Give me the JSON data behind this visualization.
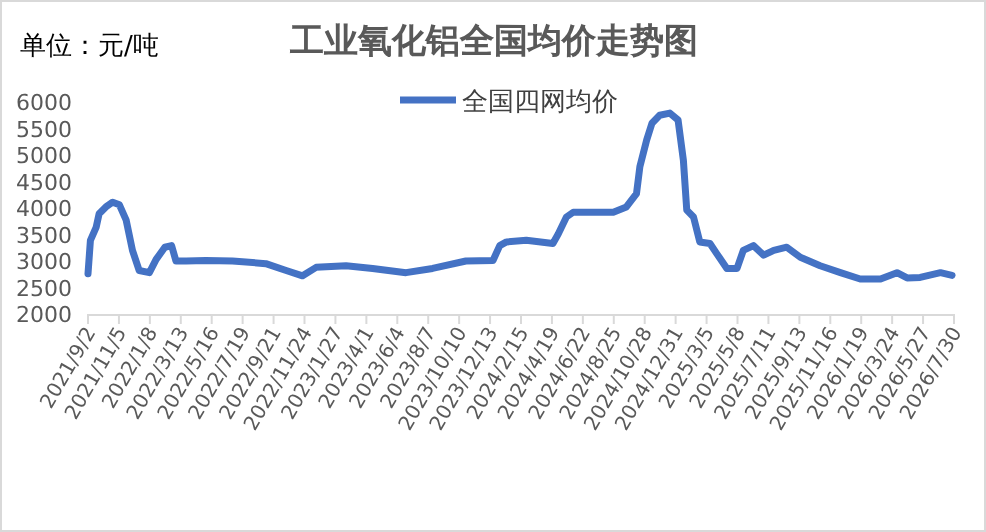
{
  "chart_data": {
    "type": "line",
    "title": "工业氧化铝全国均价走势图",
    "annotations": [
      "单位：元/吨"
    ],
    "legend": "top",
    "grid": false,
    "xlim": [
      "2021-09-02",
      "2026-07-30"
    ],
    "xticks": [
      {
        "value": "2021-09-02",
        "label": "2021/9/2"
      },
      {
        "value": "2021-11-05",
        "label": "2021/11/5"
      },
      {
        "value": "2022-01-08",
        "label": "2022/1/8"
      },
      {
        "value": "2022-03-13",
        "label": "2022/3/13"
      },
      {
        "value": "2022-05-16",
        "label": "2022/5/16"
      },
      {
        "value": "2022-07-19",
        "label": "2022/7/19"
      },
      {
        "value": "2022-09-21",
        "label": "2022/9/21"
      },
      {
        "value": "2022-11-24",
        "label": "2022/11/24"
      },
      {
        "value": "2023-01-27",
        "label": "2023/1/27"
      },
      {
        "value": "2023-04-01",
        "label": "2023/4/1"
      },
      {
        "value": "2023-06-04",
        "label": "2023/6/4"
      },
      {
        "value": "2023-08-07",
        "label": "2023/8/7"
      },
      {
        "value": "2023-10-10",
        "label": "2023/10/10"
      },
      {
        "value": "2023-12-13",
        "label": "2023/12/13"
      },
      {
        "value": "2024-02-15",
        "label": "2024/2/15"
      },
      {
        "value": "2024-04-19",
        "label": "2024/4/19"
      },
      {
        "value": "2024-06-22",
        "label": "2024/6/22"
      },
      {
        "value": "2024-08-25",
        "label": "2024/8/25"
      },
      {
        "value": "2024-10-28",
        "label": "2024/10/28"
      },
      {
        "value": "2024-12-31",
        "label": "2024/12/31"
      },
      {
        "value": "2025-03-05",
        "label": "2025/3/5"
      },
      {
        "value": "2025-05-08",
        "label": "2025/5/8"
      },
      {
        "value": "2025-07-11",
        "label": "2025/7/11"
      },
      {
        "value": "2025-09-13",
        "label": "2025/9/13"
      },
      {
        "value": "2025-11-16",
        "label": "2025/11/16"
      },
      {
        "value": "2026-01-19",
        "label": "2026/1/19"
      },
      {
        "value": "2026-03-24",
        "label": "2026/3/24"
      },
      {
        "value": "2026-05-27",
        "label": "2026/5/27"
      },
      {
        "value": "2026-07-30",
        "label": "2026/7/30"
      }
    ],
    "ylim": [
      2000,
      6000
    ],
    "yticks": [
      2000,
      2500,
      3000,
      3500,
      4000,
      4500,
      5000,
      5500,
      6000
    ],
    "x": [
      "2021-09-02",
      "2021-09-07",
      "2021-09-19",
      "2021-09-25",
      "2021-10-09",
      "2021-10-23",
      "2021-11-06",
      "2021-11-20",
      "2021-12-03",
      "2021-12-17",
      "2022-01-07",
      "2022-01-21",
      "2022-02-08",
      "2022-02-22",
      "2022-03-03",
      "2022-03-24",
      "2022-05-04",
      "2022-06-28",
      "2022-09-05",
      "2022-10-17",
      "2022-11-20",
      "2022-12-18",
      "2023-02-18",
      "2023-04-14",
      "2023-06-22",
      "2023-08-16",
      "2023-10-24",
      "2023-12-19",
      "2024-01-02",
      "2024-01-16",
      "2024-02-26",
      "2024-04-21",
      "2024-05-02",
      "2024-05-19",
      "2024-06-02",
      "2024-08-24",
      "2024-09-20",
      "2024-10-11",
      "2024-10-18",
      "2024-11-01",
      "2024-11-12",
      "2024-11-28",
      "2024-12-19",
      "2025-01-05",
      "2025-01-16",
      "2025-01-23",
      "2025-02-06",
      "2025-02-19",
      "2025-03-12",
      "2025-03-26",
      "2025-04-16",
      "2025-05-07",
      "2025-05-20",
      "2025-06-10",
      "2025-07-01",
      "2025-07-22",
      "2025-08-18",
      "2025-09-15",
      "2025-10-26",
      "2025-12-07",
      "2026-01-17",
      "2026-02-28",
      "2026-04-03",
      "2026-04-24",
      "2026-05-21",
      "2026-07-02",
      "2026-07-26"
    ],
    "series": [
      {
        "name": "全国四网均价",
        "color": "#4472c4",
        "values": [
          2760,
          3390,
          3640,
          3890,
          4020,
          4110,
          4060,
          3770,
          3200,
          2820,
          2780,
          3030,
          3260,
          3290,
          3000,
          3000,
          3010,
          3000,
          2950,
          2820,
          2720,
          2880,
          2910,
          2860,
          2780,
          2860,
          3000,
          3010,
          3290,
          3360,
          3390,
          3330,
          3510,
          3830,
          3920,
          3920,
          4020,
          4270,
          4780,
          5280,
          5600,
          5750,
          5790,
          5660,
          4900,
          3960,
          3830,
          3360,
          3330,
          3140,
          2860,
          2860,
          3200,
          3290,
          3110,
          3200,
          3260,
          3070,
          2910,
          2780,
          2660,
          2660,
          2780,
          2680,
          2690,
          2780,
          2730
        ]
      }
    ]
  }
}
